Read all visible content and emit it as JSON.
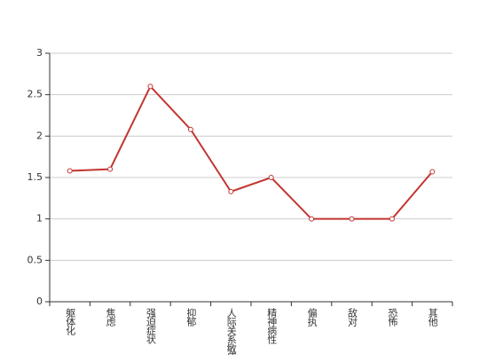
{
  "chart_data": {
    "type": "line",
    "categories": [
      "躯体化",
      "焦虑",
      "强迫症状",
      "抑郁",
      "人际关系敏感",
      "精神病性",
      "偏执",
      "敌对",
      "恐怖",
      "其他"
    ],
    "values": [
      1.58,
      1.6,
      2.6,
      2.08,
      1.33,
      1.5,
      1,
      1,
      1,
      1.57
    ],
    "color": "#c23531",
    "ylim": [
      0,
      3
    ],
    "yticks": [
      0,
      0.5,
      1,
      1.5,
      2,
      2.5,
      3
    ],
    "grid": true
  }
}
